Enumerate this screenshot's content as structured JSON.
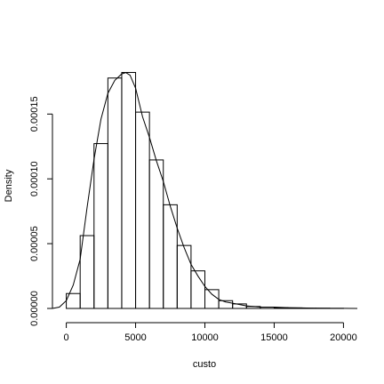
{
  "chart_data": {
    "type": "histogram",
    "title": "",
    "xlabel": "custo",
    "ylabel": "Density",
    "xlim": [
      -1000,
      21000
    ],
    "ylim": [
      0,
      0.00019
    ],
    "grid": false,
    "legend": "none",
    "x_ticks": [
      0,
      5000,
      10000,
      15000,
      20000
    ],
    "x_tick_labels": [
      "0",
      "5000",
      "10000",
      "15000",
      "20000"
    ],
    "y_ticks": [
      0,
      5e-05,
      0.0001,
      0.00015
    ],
    "y_tick_labels": [
      "0.00000",
      "0.00005",
      "0.00010",
      "0.00015"
    ],
    "bins": [
      {
        "x0": 0,
        "x1": 1000,
        "density": 1.15e-05
      },
      {
        "x0": 1000,
        "x1": 2000,
        "density": 5.62e-05
      },
      {
        "x0": 2000,
        "x1": 3000,
        "density": 0.0001272
      },
      {
        "x0": 3000,
        "x1": 4000,
        "density": 0.0001778
      },
      {
        "x0": 4000,
        "x1": 5000,
        "density": 0.0001821
      },
      {
        "x0": 5000,
        "x1": 6000,
        "density": 0.0001515
      },
      {
        "x0": 6000,
        "x1": 7000,
        "density": 0.0001146
      },
      {
        "x0": 7000,
        "x1": 8000,
        "density": 8e-05
      },
      {
        "x0": 8000,
        "x1": 9000,
        "density": 4.86e-05
      },
      {
        "x0": 9000,
        "x1": 10000,
        "density": 2.9e-05
      },
      {
        "x0": 10000,
        "x1": 11000,
        "density": 1.45e-05
      },
      {
        "x0": 11000,
        "x1": 12000,
        "density": 6e-06
      },
      {
        "x0": 12000,
        "x1": 13000,
        "density": 3.5e-06
      },
      {
        "x0": 13000,
        "x1": 14000,
        "density": 1.5e-06
      },
      {
        "x0": 14000,
        "x1": 15000,
        "density": 1e-06
      },
      {
        "x0": 15000,
        "x1": 16000,
        "density": 6e-07
      },
      {
        "x0": 16000,
        "x1": 17000,
        "density": 4e-07
      },
      {
        "x0": 17000,
        "x1": 18000,
        "density": 2e-07
      },
      {
        "x0": 18000,
        "x1": 19000,
        "density": 2e-07
      },
      {
        "x0": 19000,
        "x1": 20000,
        "density": 1e-07
      }
    ],
    "density_curve": {
      "x": [
        -1000,
        -500,
        0,
        500,
        1000,
        1500,
        2000,
        2500,
        3000,
        3500,
        4000,
        4300,
        4600,
        5000,
        5500,
        6000,
        6500,
        7000,
        7500,
        8000,
        8500,
        9000,
        9500,
        10000,
        10500,
        11000,
        11500,
        12000,
        13000,
        14000,
        15000,
        16000,
        17000,
        18000,
        19000,
        20000,
        21000
      ],
      "y": [
        0,
        1e-06,
        6e-06,
        1.8e-05,
        3.8e-05,
        7.8e-05,
        0.000115,
        0.000146,
        0.000166,
        0.000176,
        0.000181,
        0.000182,
        0.00018,
        0.00017,
        0.000148,
        0.000132,
        0.000114,
        9.8e-05,
        7.9e-05,
        6.2e-05,
        4.7e-05,
        3.4e-05,
        2.5e-05,
        1.7e-05,
        1.1e-05,
        7e-06,
        5e-06,
        4e-06,
        2e-06,
        1e-06,
        1e-06,
        6e-07,
        4e-07,
        2e-07,
        1e-07,
        1e-07,
        0
      ]
    }
  }
}
